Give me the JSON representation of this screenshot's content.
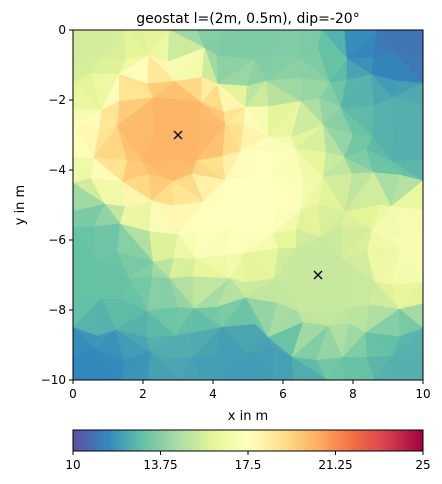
{
  "chart_data": {
    "type": "heatmap",
    "title": "geostat l=(2m, 0.5m), dip=-20°",
    "xlabel": "x in m",
    "ylabel": "y in m",
    "xlim": [
      0,
      10
    ],
    "ylim": [
      -10,
      0
    ],
    "x_ticks": [
      0,
      2,
      4,
      6,
      8,
      10
    ],
    "x_tick_labels": [
      "0",
      "2",
      "4",
      "6",
      "8",
      "10"
    ],
    "y_ticks": [
      0,
      -2,
      -4,
      -6,
      -8,
      -10
    ],
    "y_tick_labels": [
      "0",
      "−2",
      "−4",
      "−6",
      "−8",
      "−10"
    ],
    "grid": false,
    "mesh": "triangular",
    "value_range": [
      10,
      25
    ],
    "colormap": "Spectral_r",
    "colormap_stops": [
      "#5e4fa2",
      "#3288bd",
      "#66c2a5",
      "#abdda4",
      "#e6f598",
      "#ffffbf",
      "#fee08b",
      "#fdae61",
      "#f46d43",
      "#d53e4f",
      "#9e0142"
    ],
    "colorbar": {
      "orientation": "horizontal",
      "location": "bottom",
      "ticks": [
        10,
        13.75,
        17.5,
        21.25,
        25
      ],
      "tick_labels": [
        "10",
        "13.75",
        "17.5",
        "21.25",
        "25"
      ]
    },
    "field_points": [
      {
        "x": 3,
        "y": -3,
        "value": 20.3
      },
      {
        "x": 7,
        "y": -7,
        "value": 15.2
      },
      {
        "x": 0,
        "y": 0,
        "value": 15.5
      },
      {
        "x": 5,
        "y": 0,
        "value": 13.5
      },
      {
        "x": 10,
        "y": 0,
        "value": 11.0
      },
      {
        "x": 10,
        "y": -3,
        "value": 12.5
      },
      {
        "x": 10,
        "y": -6,
        "value": 17.0
      },
      {
        "x": 10,
        "y": -10,
        "value": 12.5
      },
      {
        "x": 5,
        "y": -10,
        "value": 12.0
      },
      {
        "x": 0,
        "y": -10,
        "value": 11.5
      },
      {
        "x": 0,
        "y": -7,
        "value": 13.0
      },
      {
        "x": 5,
        "y": -5,
        "value": 17.5
      }
    ],
    "markers": [
      {
        "x": 3,
        "y": -3,
        "symbol": "x"
      },
      {
        "x": 7,
        "y": -7,
        "symbol": "x"
      }
    ]
  }
}
